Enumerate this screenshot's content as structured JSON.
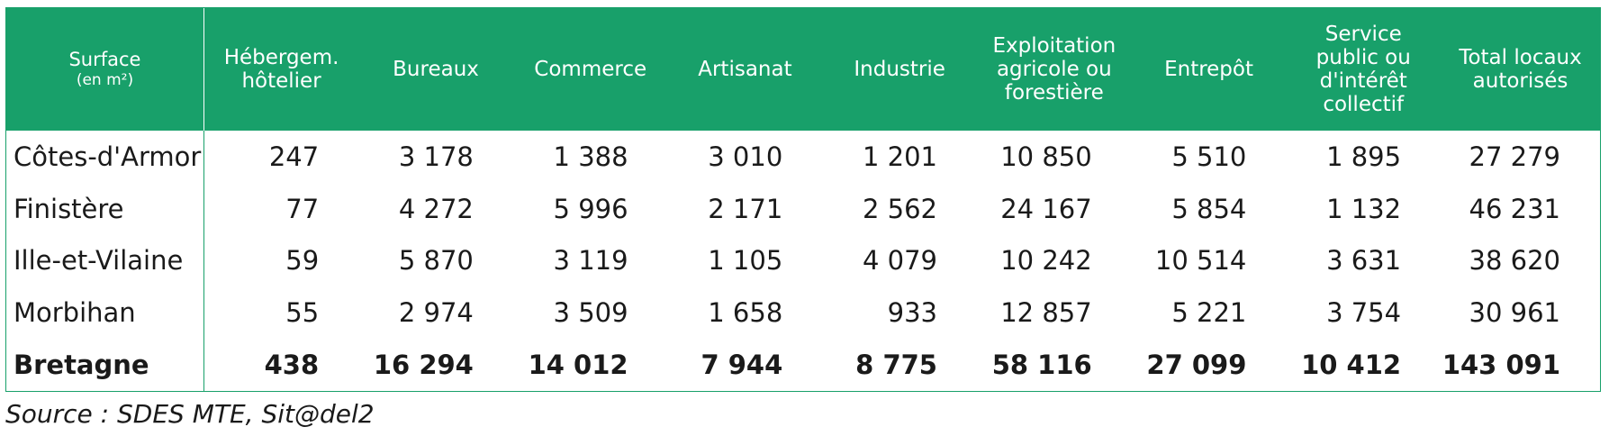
{
  "table": {
    "header": {
      "surface_label": "Surface",
      "surface_unit": "(en m²)",
      "columns": [
        [
          "Hébergem.",
          "hôtelier"
        ],
        [
          "Bureaux"
        ],
        [
          "Commerce"
        ],
        [
          "Artisanat"
        ],
        [
          "Industrie"
        ],
        [
          "Exploitation",
          "agricole ou",
          "forestière"
        ],
        [
          "Entrepôt"
        ],
        [
          "Service",
          "public ou",
          "d'intérêt",
          "collectif"
        ],
        [
          "Total locaux",
          "autorisés"
        ]
      ]
    },
    "rows": [
      {
        "region": "Côtes-d'Armor",
        "values": [
          "247",
          "3 178",
          "1 388",
          "3 010",
          "1 201",
          "10 850",
          "5 510",
          "1 895",
          "27 279"
        ]
      },
      {
        "region": "Finistère",
        "values": [
          "77",
          "4 272",
          "5 996",
          "2 171",
          "2 562",
          "24 167",
          "5 854",
          "1 132",
          "46 231"
        ]
      },
      {
        "region": "Ille-et-Vilaine",
        "values": [
          "59",
          "5 870",
          "3 119",
          "1 105",
          "4 079",
          "10 242",
          "10 514",
          "3 631",
          "38 620"
        ]
      },
      {
        "region": "Morbihan",
        "values": [
          "55",
          "2 974",
          "3 509",
          "1 658",
          "933",
          "12 857",
          "5 221",
          "3 754",
          "30 961"
        ]
      }
    ],
    "total": {
      "region": "Bretagne",
      "values": [
        "438",
        "16 294",
        "14 012",
        "7 944",
        "8 775",
        "58 116",
        "27 099",
        "10 412",
        "143 091"
      ]
    }
  },
  "source": "Source : SDES MTE, Sit@del2",
  "colors": {
    "accent": "#18a06a",
    "header_text": "#ffffff"
  }
}
